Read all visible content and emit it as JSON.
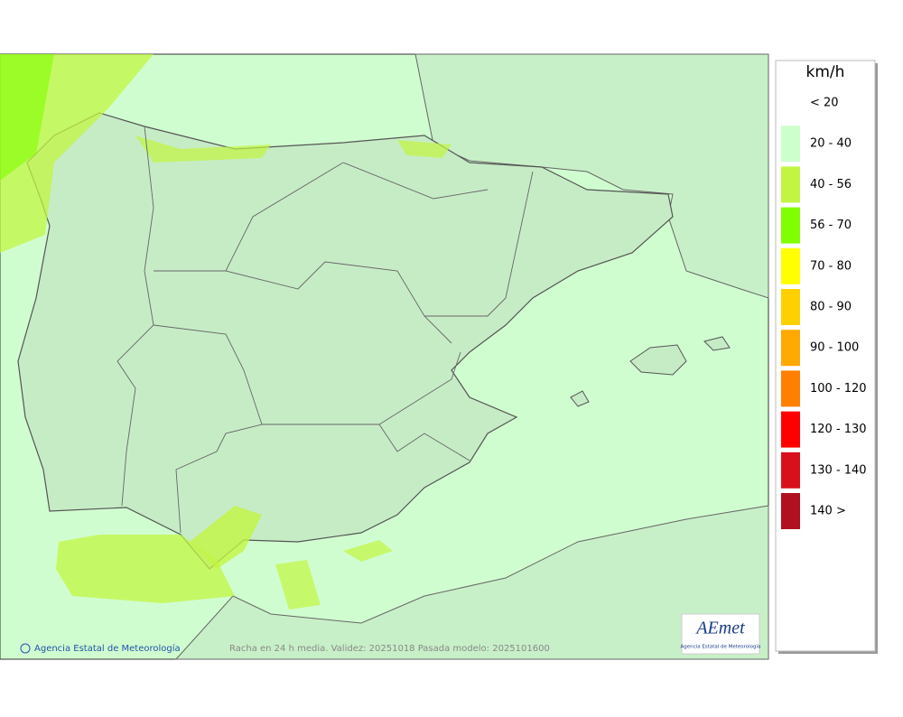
{
  "map": {
    "credit": "Agencia Estatal de Meteorología",
    "caption": "Racha en 24 h media. Validez: 20251018 Pasada modelo: 2025101600",
    "logo": {
      "name": "AEmet",
      "subtitle": "Agencia Estatal de Meteorología"
    }
  },
  "legend": {
    "unit": "km/h",
    "items": [
      {
        "label": "< 20",
        "color": "#ffffff"
      },
      {
        "label": "20 - 40",
        "color": "#ccffcc"
      },
      {
        "label": "40 - 56",
        "color": "#c2f542"
      },
      {
        "label": "56 - 70",
        "color": "#80ff00"
      },
      {
        "label": "70 - 80",
        "color": "#ffff00"
      },
      {
        "label": "80 - 90",
        "color": "#ffd000"
      },
      {
        "label": "90 - 100",
        "color": "#ffaa00"
      },
      {
        "label": "100 - 120",
        "color": "#ff8000"
      },
      {
        "label": "120 - 130",
        "color": "#ff0000"
      },
      {
        "label": "130 - 140",
        "color": "#d8101c"
      },
      {
        "label": "140 >",
        "color": "#b01020"
      }
    ]
  }
}
